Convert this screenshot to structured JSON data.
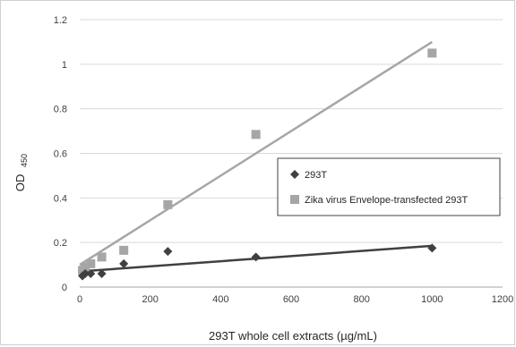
{
  "chart_data": {
    "type": "scatter",
    "xlabel": "293T whole cell extracts (µg/mL)",
    "ylabel_main": "OD",
    "ylabel_sub": "450",
    "xlim": [
      0,
      1200
    ],
    "ylim": [
      0,
      1.2
    ],
    "x_ticks": [
      "0",
      "200",
      "400",
      "600",
      "800",
      "1000",
      "1200"
    ],
    "y_ticks": [
      "0",
      "0.2",
      "0.4",
      "0.6",
      "0.8",
      "1",
      "1.2"
    ],
    "grid": "horizontal",
    "legend_position": "right-middle",
    "series": [
      {
        "name": "293T",
        "marker": "diamond",
        "color": "#404040",
        "x": [
          7.8,
          15.6,
          31.25,
          62.5,
          125,
          250,
          500,
          1000
        ],
        "y": [
          0.05,
          0.06,
          0.06,
          0.06,
          0.105,
          0.16,
          0.135,
          0.175
        ],
        "trendline": {
          "x": [
            0,
            1000
          ],
          "y": [
            0.07,
            0.185
          ]
        }
      },
      {
        "name": "Zika virus Envelope-transfected 293T",
        "marker": "square",
        "color": "#a6a6a6",
        "x": [
          7.8,
          15.6,
          31.25,
          62.5,
          125,
          250,
          500,
          1000
        ],
        "y": [
          0.075,
          0.09,
          0.105,
          0.135,
          0.165,
          0.37,
          0.685,
          1.05
        ],
        "trendline": {
          "x": [
            0,
            1000
          ],
          "y": [
            0.1,
            1.1
          ]
        }
      }
    ]
  }
}
